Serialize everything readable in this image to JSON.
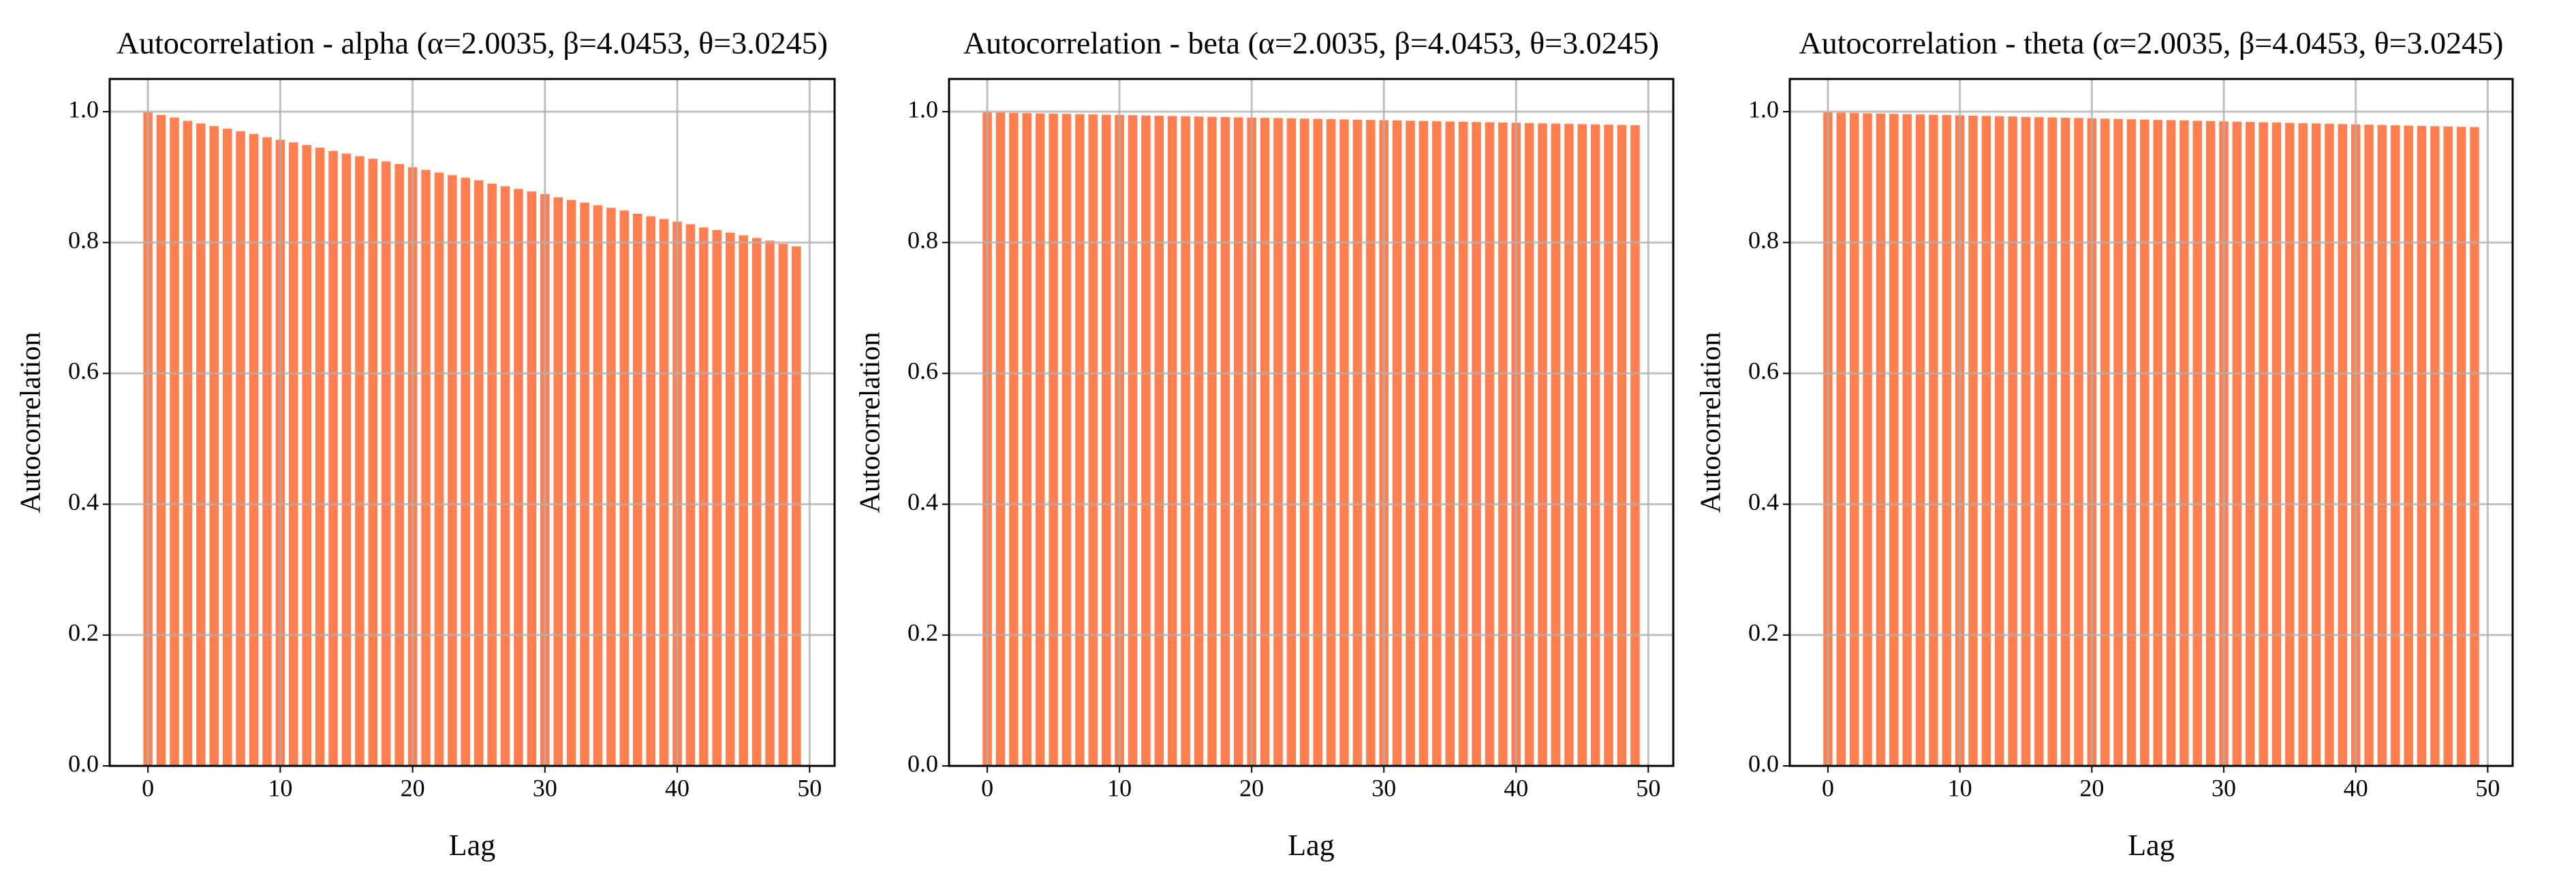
{
  "chart_data": [
    {
      "type": "bar",
      "title": "Autocorrelation - alpha (α=2.0035, β=4.0453, θ=3.0245)",
      "xlabel": "Lag",
      "ylabel": "Autocorrelation",
      "color": "#ff7f50",
      "grid": true,
      "x": [
        0,
        1,
        2,
        3,
        4,
        5,
        6,
        7,
        8,
        9,
        10,
        11,
        12,
        13,
        14,
        15,
        16,
        17,
        18,
        19,
        20,
        21,
        22,
        23,
        24,
        25,
        26,
        27,
        28,
        29,
        30,
        31,
        32,
        33,
        34,
        35,
        36,
        37,
        38,
        39,
        40,
        41,
        42,
        43,
        44,
        45,
        46,
        47,
        48,
        49
      ],
      "values": [
        1.0,
        0.996,
        0.992,
        0.987,
        0.983,
        0.979,
        0.975,
        0.971,
        0.967,
        0.962,
        0.958,
        0.954,
        0.95,
        0.946,
        0.941,
        0.937,
        0.933,
        0.929,
        0.925,
        0.921,
        0.916,
        0.912,
        0.908,
        0.904,
        0.9,
        0.896,
        0.891,
        0.887,
        0.883,
        0.879,
        0.875,
        0.87,
        0.866,
        0.862,
        0.858,
        0.854,
        0.85,
        0.845,
        0.841,
        0.837,
        0.833,
        0.829,
        0.824,
        0.82,
        0.816,
        0.812,
        0.808,
        0.804,
        0.799,
        0.795
      ],
      "xlim": [
        -2.89,
        51.89
      ],
      "ylim": [
        0,
        1.05
      ],
      "xticks": [
        0,
        10,
        20,
        30,
        40,
        50
      ],
      "yticks": [
        {
          "value": 0,
          "label": "0.0"
        },
        0.2,
        0.4,
        0.6,
        0.8,
        {
          "value": 1,
          "label": "1.0"
        }
      ]
    },
    {
      "type": "bar",
      "title": "Autocorrelation - beta (α=2.0035, β=4.0453, θ=3.0245)",
      "xlabel": "Lag",
      "ylabel": "Autocorrelation",
      "color": "#ff7f50",
      "grid": true,
      "x": [
        0,
        1,
        2,
        3,
        4,
        5,
        6,
        7,
        8,
        9,
        10,
        11,
        12,
        13,
        14,
        15,
        16,
        17,
        18,
        19,
        20,
        21,
        22,
        23,
        24,
        25,
        26,
        27,
        28,
        29,
        30,
        31,
        32,
        33,
        34,
        35,
        36,
        37,
        38,
        39,
        40,
        41,
        42,
        43,
        44,
        45,
        46,
        47,
        48,
        49
      ],
      "values": [
        1.0,
        0.9996,
        0.9992,
        0.9988,
        0.9984,
        0.998,
        0.9976,
        0.9972,
        0.9968,
        0.9964,
        0.996,
        0.9956,
        0.9952,
        0.9948,
        0.9944,
        0.994,
        0.9936,
        0.9932,
        0.9928,
        0.9924,
        0.992,
        0.9916,
        0.9912,
        0.9908,
        0.9904,
        0.99,
        0.9896,
        0.9892,
        0.9888,
        0.9884,
        0.988,
        0.9876,
        0.9872,
        0.9868,
        0.9864,
        0.986,
        0.9856,
        0.9852,
        0.9848,
        0.9844,
        0.984,
        0.9836,
        0.9832,
        0.9828,
        0.9824,
        0.982,
        0.9816,
        0.9812,
        0.9808,
        0.9804
      ],
      "xlim": [
        -2.89,
        51.89
      ],
      "ylim": [
        0,
        1.05
      ],
      "xticks": [
        0,
        10,
        20,
        30,
        40,
        50
      ],
      "yticks": [
        {
          "value": 0,
          "label": "0.0"
        },
        0.2,
        0.4,
        0.6,
        0.8,
        {
          "value": 1,
          "label": "1.0"
        }
      ]
    },
    {
      "type": "bar",
      "title": "Autocorrelation - theta (α=2.0035, β=4.0453, θ=3.0245)",
      "xlabel": "Lag",
      "ylabel": "Autocorrelation",
      "color": "#ff7f50",
      "grid": true,
      "x": [
        0,
        1,
        2,
        3,
        4,
        5,
        6,
        7,
        8,
        9,
        10,
        11,
        12,
        13,
        14,
        15,
        16,
        17,
        18,
        19,
        20,
        21,
        22,
        23,
        24,
        25,
        26,
        27,
        28,
        29,
        30,
        31,
        32,
        33,
        34,
        35,
        36,
        37,
        38,
        39,
        40,
        41,
        42,
        43,
        44,
        45,
        46,
        47,
        48,
        49
      ],
      "values": [
        1.0,
        0.9995,
        0.9991,
        0.9986,
        0.9982,
        0.9977,
        0.9972,
        0.9968,
        0.9963,
        0.9959,
        0.9954,
        0.9949,
        0.9945,
        0.994,
        0.9936,
        0.9931,
        0.9926,
        0.9922,
        0.9917,
        0.9913,
        0.9908,
        0.9903,
        0.9899,
        0.9894,
        0.989,
        0.9885,
        0.988,
        0.9876,
        0.9871,
        0.9867,
        0.9862,
        0.9857,
        0.9853,
        0.9848,
        0.9844,
        0.9839,
        0.9834,
        0.983,
        0.9825,
        0.9821,
        0.9816,
        0.9811,
        0.9807,
        0.9802,
        0.9798,
        0.9793,
        0.9788,
        0.9784,
        0.9779,
        0.9775
      ],
      "xlim": [
        -2.89,
        51.89
      ],
      "ylim": [
        0,
        1.05
      ],
      "xticks": [
        0,
        10,
        20,
        30,
        40,
        50
      ],
      "yticks": [
        {
          "value": 0,
          "label": "0.0"
        },
        0.2,
        0.4,
        0.6,
        0.8,
        {
          "value": 1,
          "label": "1.0"
        }
      ]
    }
  ]
}
